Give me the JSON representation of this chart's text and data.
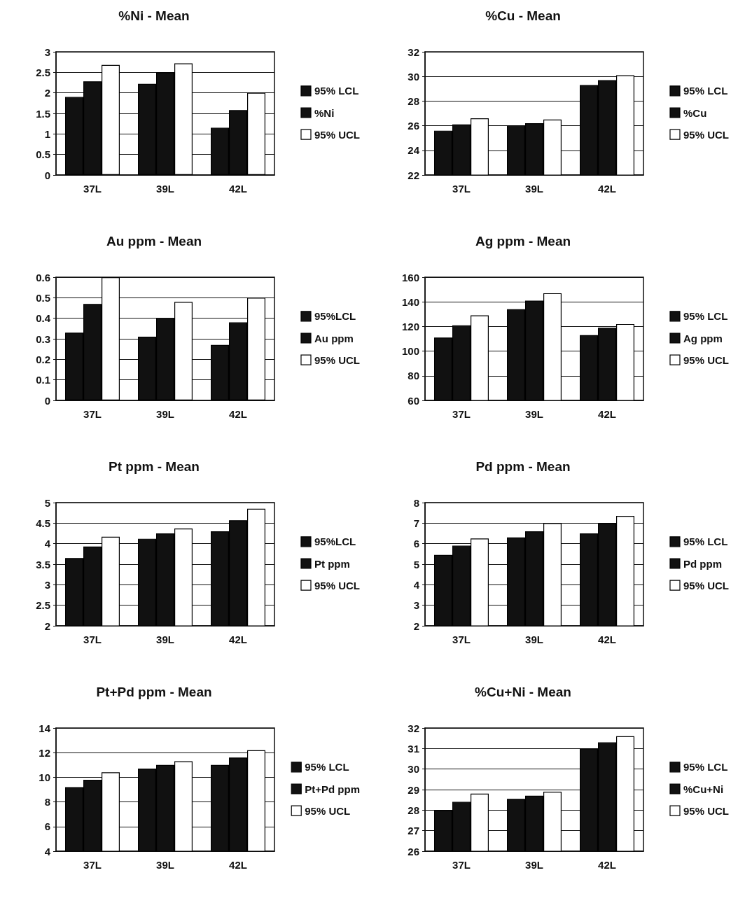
{
  "chart_data": [
    {
      "type": "bar",
      "title": "%Ni - Mean",
      "categories": [
        "37L",
        "39L",
        "42L"
      ],
      "series": [
        {
          "name": "95% LCL",
          "color": "#111111",
          "values": [
            1.9,
            2.22,
            1.15
          ]
        },
        {
          "name": "%Ni",
          "color": "#111111",
          "values": [
            2.28,
            2.5,
            1.58
          ]
        },
        {
          "name": "95% UCL",
          "color": "#ffffff",
          "values": [
            2.68,
            2.72,
            2.0
          ]
        }
      ],
      "ylim": [
        0,
        3
      ],
      "yticks": [
        0,
        0.5,
        1,
        1.5,
        2,
        2.5,
        3
      ],
      "grid": "y",
      "legend": "right"
    },
    {
      "type": "bar",
      "title": "%Cu - Mean",
      "categories": [
        "37L",
        "39L",
        "42L"
      ],
      "series": [
        {
          "name": "95% LCL",
          "color": "#111111",
          "values": [
            25.6,
            26.0,
            29.3
          ]
        },
        {
          "name": "%Cu",
          "color": "#111111",
          "values": [
            26.1,
            26.2,
            29.7
          ]
        },
        {
          "name": "95% UCL",
          "color": "#ffffff",
          "values": [
            26.6,
            26.5,
            30.1
          ]
        }
      ],
      "ylim": [
        22,
        32
      ],
      "yticks": [
        22,
        24,
        26,
        28,
        30,
        32
      ],
      "grid": "y",
      "legend": "right"
    },
    {
      "type": "bar",
      "title": "Au ppm - Mean",
      "categories": [
        "37L",
        "39L",
        "42L"
      ],
      "series": [
        {
          "name": "95%LCL",
          "color": "#111111",
          "values": [
            0.33,
            0.31,
            0.27
          ]
        },
        {
          "name": "Au ppm",
          "color": "#111111",
          "values": [
            0.47,
            0.4,
            0.38
          ]
        },
        {
          "name": "95% UCL",
          "color": "#ffffff",
          "values": [
            0.6,
            0.48,
            0.5
          ]
        }
      ],
      "ylim": [
        0,
        0.6
      ],
      "yticks": [
        0,
        0.1,
        0.2,
        0.3,
        0.4,
        0.5,
        0.6
      ],
      "grid": "y",
      "legend": "right"
    },
    {
      "type": "bar",
      "title": "Ag ppm - Mean",
      "categories": [
        "37L",
        "39L",
        "42L"
      ],
      "series": [
        {
          "name": "95% LCL",
          "color": "#111111",
          "values": [
            111,
            134,
            113
          ]
        },
        {
          "name": "Ag ppm",
          "color": "#111111",
          "values": [
            121,
            141,
            119
          ]
        },
        {
          "name": "95% UCL",
          "color": "#ffffff",
          "values": [
            129,
            147,
            122
          ]
        }
      ],
      "ylim": [
        60,
        160
      ],
      "yticks": [
        60,
        80,
        100,
        120,
        140,
        160
      ],
      "grid": "y",
      "legend": "right"
    },
    {
      "type": "bar",
      "title": "Pt ppm - Mean",
      "categories": [
        "37L",
        "39L",
        "42L"
      ],
      "series": [
        {
          "name": "95%LCL",
          "color": "#111111",
          "values": [
            3.65,
            4.12,
            4.3
          ]
        },
        {
          "name": "Pt ppm",
          "color": "#111111",
          "values": [
            3.93,
            4.25,
            4.57
          ]
        },
        {
          "name": "95% UCL",
          "color": "#ffffff",
          "values": [
            4.17,
            4.37,
            4.85
          ]
        }
      ],
      "ylim": [
        2,
        5
      ],
      "yticks": [
        2,
        2.5,
        3,
        3.5,
        4,
        4.5,
        5
      ],
      "grid": "y",
      "legend": "right"
    },
    {
      "type": "bar",
      "title": "Pd ppm - Mean",
      "categories": [
        "37L",
        "39L",
        "42L"
      ],
      "series": [
        {
          "name": "95% LCL",
          "color": "#111111",
          "values": [
            5.45,
            6.3,
            6.5
          ]
        },
        {
          "name": "Pd ppm",
          "color": "#111111",
          "values": [
            5.9,
            6.6,
            7.0
          ]
        },
        {
          "name": "95% UCL",
          "color": "#ffffff",
          "values": [
            6.25,
            7.0,
            7.35
          ]
        }
      ],
      "ylim": [
        2,
        8
      ],
      "yticks": [
        2,
        3,
        4,
        5,
        6,
        7,
        8
      ],
      "grid": "y",
      "legend": "right"
    },
    {
      "type": "bar",
      "title": "Pt+Pd ppm - Mean",
      "categories": [
        "37L",
        "39L",
        "42L"
      ],
      "series": [
        {
          "name": "95% LCL",
          "color": "#111111",
          "values": [
            9.2,
            10.7,
            11.0
          ]
        },
        {
          "name": "Pt+Pd ppm",
          "color": "#111111",
          "values": [
            9.8,
            11.0,
            11.6
          ]
        },
        {
          "name": "95% UCL",
          "color": "#ffffff",
          "values": [
            10.4,
            11.3,
            12.2
          ]
        }
      ],
      "ylim": [
        4,
        14
      ],
      "yticks": [
        4,
        6,
        8,
        10,
        12,
        14
      ],
      "grid": "y",
      "legend": "right"
    },
    {
      "type": "bar",
      "title": "%Cu+Ni - Mean",
      "categories": [
        "37L",
        "39L",
        "42L"
      ],
      "series": [
        {
          "name": "95% LCL",
          "color": "#111111",
          "values": [
            28.0,
            28.55,
            31.0
          ]
        },
        {
          "name": "%Cu+Ni",
          "color": "#111111",
          "values": [
            28.4,
            28.7,
            31.3
          ]
        },
        {
          "name": "95% UCL",
          "color": "#ffffff",
          "values": [
            28.8,
            28.9,
            31.6
          ]
        }
      ],
      "ylim": [
        26,
        32
      ],
      "yticks": [
        26,
        27,
        28,
        29,
        30,
        31,
        32
      ],
      "grid": "y",
      "legend": "right"
    }
  ]
}
